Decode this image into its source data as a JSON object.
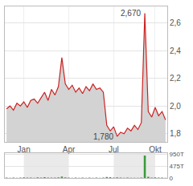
{
  "chart_data": {
    "type": "line",
    "categories": [
      null,
      null,
      null,
      null,
      null,
      "Jan",
      null,
      null,
      null,
      null,
      null,
      null,
      null,
      null,
      null,
      null,
      null,
      null,
      "Apr",
      null,
      null,
      null,
      null,
      null,
      null,
      null,
      null,
      null,
      null,
      null,
      null,
      "Jul",
      null,
      null,
      null,
      null,
      null,
      null,
      null,
      null,
      null,
      null,
      null,
      "Okt",
      null,
      null,
      null
    ],
    "series": [
      {
        "type": "area",
        "color": "#cc2222",
        "axis": "y",
        "values": [
          1.98,
          2.0,
          1.97,
          2.02,
          2.0,
          2.03,
          1.99,
          2.04,
          2.05,
          2.02,
          2.06,
          2.1,
          2.04,
          2.12,
          2.08,
          2.14,
          2.35,
          2.16,
          2.12,
          2.15,
          2.1,
          2.13,
          2.09,
          2.14,
          2.11,
          2.16,
          2.12,
          2.13,
          2.1,
          1.86,
          1.82,
          1.85,
          1.78,
          1.81,
          1.8,
          1.84,
          1.82,
          1.86,
          1.83,
          1.88,
          2.67,
          1.96,
          1.92,
          1.99,
          1.93,
          1.96,
          1.9
        ]
      },
      {
        "type": "bar",
        "color": "#3a9a3a",
        "axis": "y2",
        "values": [
          15000,
          12000,
          20000,
          10000,
          18000,
          25000,
          14000,
          16000,
          12000,
          22000,
          18000,
          30000,
          15000,
          20000,
          17000,
          25000,
          60000,
          28000,
          15000,
          12000,
          18000,
          10000,
          14000,
          12000,
          16000,
          11000,
          13000,
          10000,
          15000,
          40000,
          30000,
          18000,
          25000,
          15000,
          12000,
          14000,
          10000,
          12000,
          11000,
          15000,
          900000,
          50000,
          20000,
          25000,
          15000,
          18000,
          12000
        ]
      }
    ],
    "ylim": [
      1.74,
      2.72
    ],
    "yticks": [
      {
        "value": 1.8,
        "label": "1,8"
      },
      {
        "value": 2.0,
        "label": "2,0"
      },
      {
        "value": 2.2,
        "label": "2,2"
      },
      {
        "value": 2.4,
        "label": "2,4"
      },
      {
        "value": 2.6,
        "label": "2,6"
      }
    ],
    "y2lim": [
      0,
      1000000
    ],
    "y2ticks": [
      0,
      {
        "value": 475000,
        "label": "475T"
      },
      {
        "value": 950000,
        "label": "950T"
      }
    ],
    "grid": true,
    "annotations": [
      {
        "text": "2,670",
        "index": 40,
        "y": 2.67
      },
      {
        "text": "1,780",
        "index": 32,
        "y": 1.78
      }
    ]
  }
}
